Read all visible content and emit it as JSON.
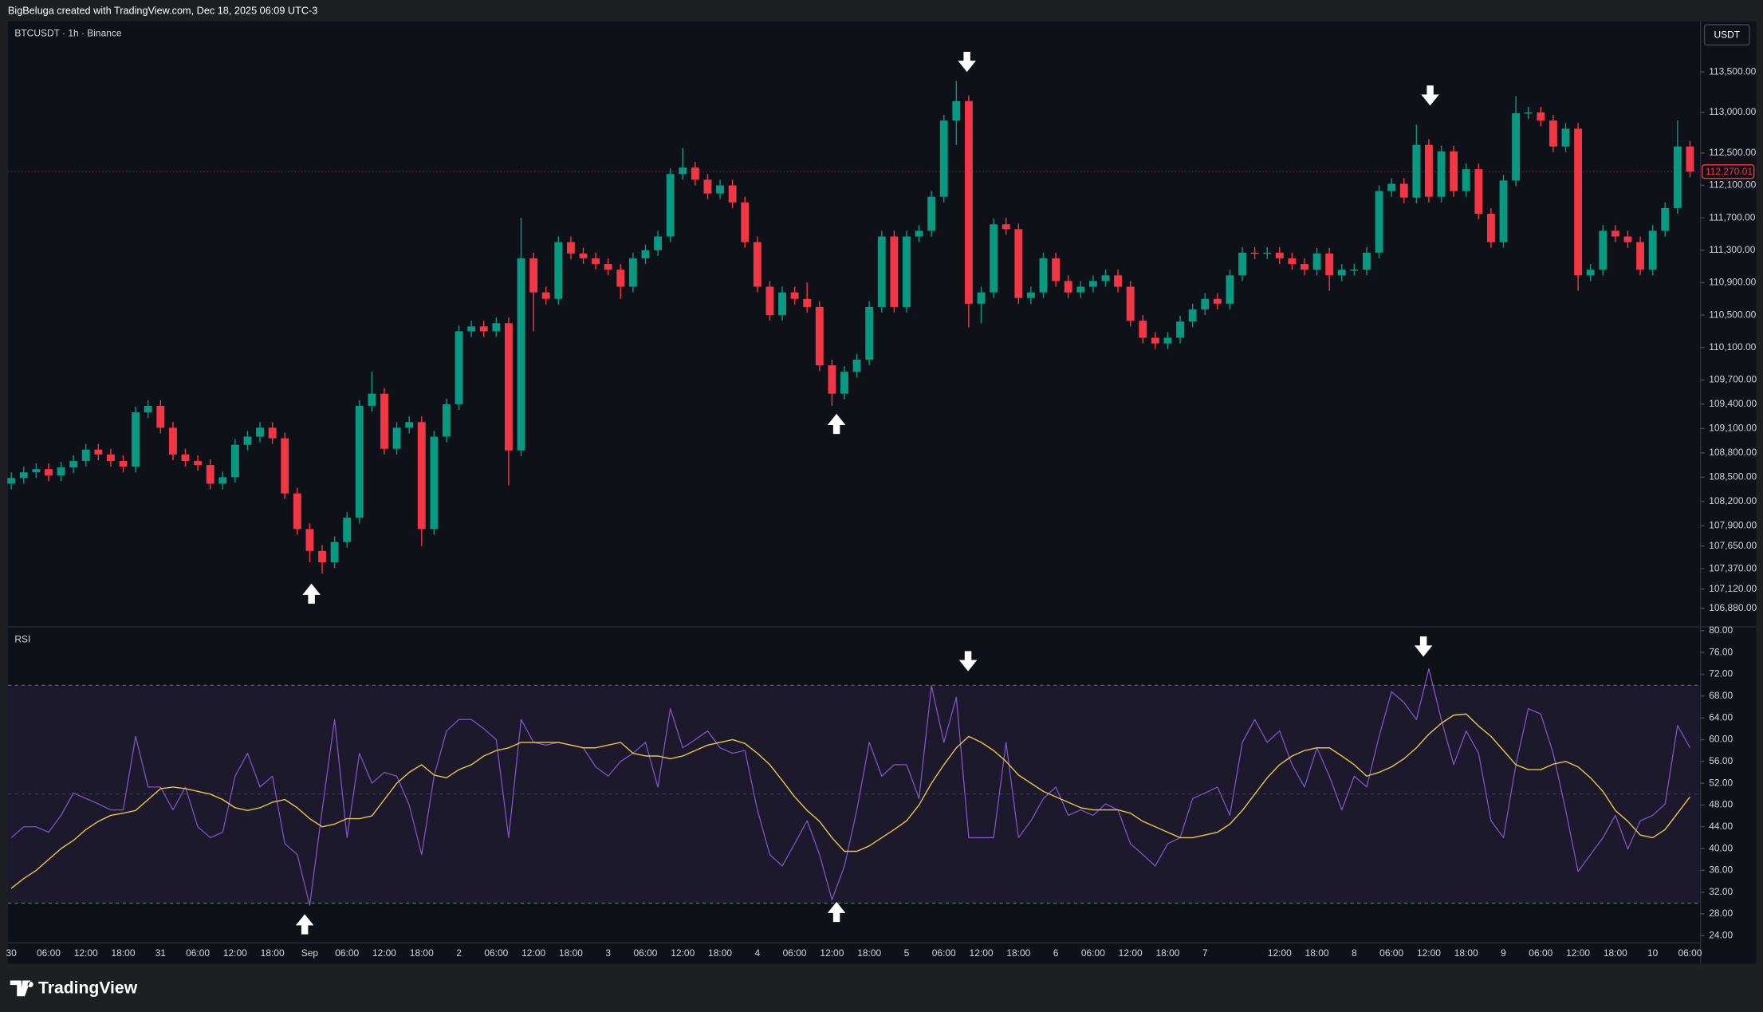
{
  "header": {
    "title": "BigBeluga created with TradingView.com, Dec 18, 2025 06:09 UTC-3"
  },
  "footer": {
    "brand": "TradingView"
  },
  "chart_data": [
    {
      "type": "candlestick",
      "title": "BTCUSDT · 1h · Binance",
      "currency": "USDT",
      "up_color": "#089981",
      "down_color": "#f23645",
      "grid": false,
      "categories": [
        "30",
        null,
        null,
        "06:00",
        null,
        null,
        "12:00",
        null,
        null,
        "18:00",
        null,
        null,
        "31",
        null,
        null,
        "06:00",
        null,
        null,
        "12:00",
        null,
        null,
        "18:00",
        null,
        null,
        "Sep",
        null,
        null,
        "06:00",
        null,
        null,
        "12:00",
        null,
        null,
        "18:00",
        null,
        null,
        "2",
        null,
        null,
        "06:00",
        null,
        null,
        "12:00",
        null,
        null,
        "18:00",
        null,
        null,
        "3",
        null,
        null,
        "06:00",
        null,
        null,
        "12:00",
        null,
        null,
        "18:00",
        null,
        null,
        "4",
        null,
        null,
        "06:00",
        null,
        null,
        "12:00",
        null,
        null,
        "18:00",
        null,
        null,
        "5",
        null,
        null,
        "06:00",
        null,
        null,
        "12:00",
        null,
        null,
        "18:00",
        null,
        null,
        "6",
        null,
        null,
        "06:00",
        null,
        null,
        "12:00",
        null,
        null,
        "18:00",
        null,
        null,
        "7",
        null,
        null,
        null,
        null,
        null,
        "12:00",
        null,
        null,
        "18:00",
        null,
        null,
        "8",
        null,
        null,
        "06:00",
        null,
        null,
        "12:00",
        null,
        null,
        "18:00",
        null,
        null,
        "9",
        null,
        null,
        "06:00",
        null,
        null,
        "12:00",
        null,
        null,
        "18:00",
        null,
        null,
        "10",
        null,
        null,
        "06:00"
      ],
      "open": [
        108420,
        108490,
        108560,
        108600,
        108520,
        108620,
        108700,
        108840,
        108780,
        108700,
        108630,
        109300,
        109380,
        109110,
        108780,
        108700,
        108650,
        108420,
        108500,
        108900,
        109000,
        109110,
        108980,
        108300,
        107860,
        107590,
        107450,
        107700,
        108000,
        109380,
        109530,
        108850,
        109110,
        109180,
        107860,
        109000,
        109400,
        110300,
        110360,
        110300,
        110400,
        108830,
        111200,
        110780,
        110700,
        111400,
        111260,
        111200,
        111130,
        111060,
        110850,
        111200,
        111300,
        111470,
        112240,
        112320,
        112170,
        112000,
        112100,
        111890,
        111400,
        110850,
        110500,
        110780,
        110700,
        110600,
        109880,
        109530,
        109800,
        109950,
        110600,
        111470,
        110600,
        111470,
        111540,
        111960,
        112900,
        113140,
        110640,
        110780,
        111620,
        111560,
        110710,
        110780,
        111200,
        110920,
        110780,
        110850,
        110920,
        110990,
        110850,
        110430,
        110220,
        110150,
        110220,
        110420,
        110570,
        110700,
        110640,
        110990,
        111270,
        111260,
        111270,
        111200,
        111130,
        111060,
        111260,
        110990,
        111060,
        111060,
        111270,
        112030,
        112120,
        111950,
        112600,
        111960,
        112520,
        112030,
        112300,
        111750,
        111400,
        112160,
        112990,
        113000,
        112900,
        112580,
        112800,
        110990,
        111060,
        111540,
        111470,
        111400,
        111060,
        111540,
        111820,
        112580
      ],
      "high": [
        108560,
        108630,
        108670,
        108670,
        108690,
        108770,
        108910,
        108910,
        108850,
        108770,
        109370,
        109450,
        109450,
        109180,
        108850,
        108770,
        108720,
        108570,
        108970,
        109070,
        109180,
        109180,
        109050,
        108370,
        107930,
        107660,
        107770,
        108070,
        109450,
        109800,
        109600,
        109180,
        109250,
        109250,
        109070,
        109470,
        110370,
        110430,
        110430,
        110470,
        110470,
        111700,
        111270,
        110850,
        111470,
        111470,
        111330,
        111270,
        111200,
        111130,
        111270,
        111370,
        111540,
        112310,
        112560,
        112390,
        112240,
        112170,
        112170,
        111960,
        111470,
        110920,
        110850,
        110850,
        110900,
        110670,
        109950,
        109870,
        110020,
        110670,
        111540,
        111540,
        111540,
        111610,
        112030,
        112970,
        113390,
        113210,
        110850,
        111690,
        111700,
        111630,
        110850,
        111270,
        111270,
        110990,
        110920,
        110990,
        111060,
        111060,
        110920,
        110500,
        110290,
        110290,
        110490,
        110640,
        110770,
        110770,
        111060,
        111340,
        111340,
        111340,
        111340,
        111270,
        111200,
        111330,
        111330,
        111130,
        111130,
        111340,
        112100,
        112190,
        112190,
        112850,
        112670,
        112590,
        112590,
        112370,
        112370,
        111820,
        112230,
        113200,
        113070,
        113070,
        112970,
        112870,
        112870,
        111130,
        111610,
        111610,
        111540,
        111470,
        111610,
        111890,
        112900,
        112650
      ],
      "low": [
        108350,
        108420,
        108490,
        108450,
        108450,
        108550,
        108630,
        108710,
        108630,
        108560,
        108560,
        109230,
        109040,
        108710,
        108630,
        108580,
        108350,
        108350,
        108430,
        108830,
        108930,
        108910,
        108230,
        107790,
        107450,
        107310,
        107380,
        107630,
        107930,
        109310,
        108780,
        108780,
        109040,
        107650,
        107790,
        108930,
        109330,
        110230,
        110230,
        110230,
        108400,
        108760,
        110300,
        110630,
        110630,
        111190,
        111130,
        111060,
        110990,
        110700,
        110780,
        111130,
        111230,
        111400,
        112170,
        112100,
        111930,
        111930,
        111820,
        111330,
        110780,
        110430,
        110430,
        110630,
        110530,
        109810,
        109380,
        109460,
        109730,
        109880,
        110530,
        110530,
        110530,
        111400,
        111470,
        111890,
        112600,
        110350,
        110400,
        110710,
        111490,
        110640,
        110640,
        110710,
        110850,
        110710,
        110710,
        110780,
        110850,
        110780,
        110360,
        110150,
        110080,
        110080,
        110150,
        110350,
        110500,
        110570,
        110570,
        110920,
        111190,
        111190,
        111130,
        111060,
        110990,
        110990,
        110800,
        110920,
        110990,
        110990,
        111200,
        111960,
        111880,
        111880,
        111890,
        111890,
        111960,
        111960,
        111680,
        111330,
        111330,
        112090,
        112920,
        112830,
        112510,
        112510,
        110800,
        110920,
        110990,
        111400,
        111330,
        110990,
        110990,
        111470,
        111750,
        112200
      ],
      "close": [
        108490,
        108560,
        108600,
        108520,
        108620,
        108700,
        108840,
        108780,
        108700,
        108630,
        109300,
        109380,
        109110,
        108780,
        108700,
        108650,
        108420,
        108500,
        108900,
        109000,
        109110,
        108980,
        108300,
        107860,
        107590,
        107450,
        107700,
        108000,
        109380,
        109530,
        108850,
        109110,
        109180,
        107860,
        109000,
        109400,
        110300,
        110360,
        110300,
        110400,
        108830,
        111200,
        110780,
        110700,
        111400,
        111260,
        111200,
        111130,
        111060,
        110850,
        111200,
        111300,
        111470,
        112240,
        112320,
        112170,
        112000,
        112100,
        111890,
        111400,
        110850,
        110500,
        110780,
        110700,
        110600,
        109880,
        109530,
        109800,
        109950,
        110600,
        111470,
        110600,
        111470,
        111540,
        111960,
        112900,
        113140,
        110640,
        110780,
        111620,
        111560,
        110710,
        110780,
        111200,
        110920,
        110780,
        110850,
        110920,
        110990,
        110850,
        110430,
        110220,
        110150,
        110220,
        110420,
        110570,
        110700,
        110640,
        110990,
        111270,
        111260,
        111270,
        111200,
        111130,
        111060,
        111260,
        110990,
        111060,
        111060,
        111270,
        112030,
        112120,
        111950,
        112600,
        111960,
        112520,
        112030,
        112300,
        111750,
        111400,
        112160,
        112990,
        113000,
        112900,
        112580,
        112800,
        110990,
        111060,
        111540,
        111470,
        111400,
        111060,
        111540,
        111820,
        112580,
        112270
      ],
      "last_price": {
        "value": 112270.01,
        "label": "112,270.01"
      },
      "ylim": [
        106660,
        114110
      ],
      "yticks": [
        {
          "value": 113500,
          "label": "113,500.00"
        },
        {
          "value": 113000,
          "label": "113,000.00"
        },
        {
          "value": 112500,
          "label": "112,500.00"
        },
        {
          "value": 112100,
          "label": "112,100.00"
        },
        {
          "value": 111700,
          "label": "111,700.00"
        },
        {
          "value": 111300,
          "label": "111,300.00"
        },
        {
          "value": 110900,
          "label": "110,900.00"
        },
        {
          "value": 110500,
          "label": "110,500.00"
        },
        {
          "value": 110100,
          "label": "110,100.00"
        },
        {
          "value": 109700,
          "label": "109,700.00"
        },
        {
          "value": 109400,
          "label": "109,400.00"
        },
        {
          "value": 109100,
          "label": "109,100.00"
        },
        {
          "value": 108800,
          "label": "108,800.00"
        },
        {
          "value": 108500,
          "label": "108,500.00"
        },
        {
          "value": 108200,
          "label": "108,200.00"
        },
        {
          "value": 107900,
          "label": "107,900.00"
        },
        {
          "value": 107650,
          "label": "107,650.00"
        },
        {
          "value": 107370,
          "label": "107,370.00"
        },
        {
          "value": 107120,
          "label": "107,120.00"
        },
        {
          "value": 106880,
          "label": "106,880.00"
        }
      ]
    },
    {
      "type": "line",
      "title": "RSI",
      "grid": false,
      "band": [
        30,
        70
      ],
      "midline": 50,
      "band_color": "#7e57c2",
      "series": [
        {
          "color": "#7e57c2",
          "values": [
            42.0,
            44.0,
            44.0,
            43.0,
            46.1,
            50.2,
            49.2,
            48.2,
            47.1,
            47.1,
            60.6,
            51.3,
            51.3,
            47.1,
            51.3,
            44.0,
            42.0,
            43.0,
            53.3,
            57.5,
            51.3,
            53.3,
            40.9,
            38.9,
            29.6,
            47.1,
            63.7,
            42.0,
            57.5,
            52.0,
            54.0,
            53.3,
            48.0,
            38.9,
            53.3,
            61.6,
            63.7,
            63.7,
            62.0,
            60.0,
            42.0,
            63.7,
            59.5,
            59.0,
            59.5,
            59.0,
            58.5,
            55.0,
            53.3,
            56.0,
            57.5,
            59.5,
            51.3,
            65.7,
            58.5,
            60.0,
            61.6,
            58.5,
            57.5,
            58.0,
            47.1,
            38.9,
            36.8,
            40.9,
            45.1,
            38.9,
            30.6,
            36.8,
            47.1,
            59.5,
            53.3,
            55.4,
            55.4,
            49.2,
            69.9,
            59.5,
            67.8,
            42.0,
            42.0,
            42.0,
            59.5,
            42.0,
            45.1,
            49.2,
            51.3,
            46.1,
            47.1,
            46.1,
            48.2,
            47.1,
            40.9,
            38.9,
            36.8,
            40.9,
            42.0,
            49.2,
            50.2,
            51.3,
            46.1,
            59.5,
            63.7,
            59.5,
            61.6,
            55.4,
            51.3,
            58.5,
            53.3,
            47.1,
            53.3,
            51.3,
            60.6,
            68.8,
            66.8,
            63.7,
            73.0,
            63.7,
            55.4,
            61.6,
            57.5,
            45.1,
            42.0,
            55.4,
            65.7,
            64.7,
            57.5,
            47.1,
            35.8,
            38.9,
            42.0,
            46.1,
            39.9,
            45.1,
            46.1,
            48.2,
            62.6,
            58.5
          ]
        },
        {
          "color": "#e8c547",
          "values": [
            32.7,
            34.5,
            36,
            38,
            40,
            41.5,
            43.5,
            45,
            46.1,
            46.5,
            47,
            49,
            51,
            51.3,
            51,
            50.5,
            50,
            49,
            47.5,
            47,
            47.5,
            48.5,
            49,
            47.5,
            45.5,
            44,
            44.5,
            45.5,
            45.5,
            46,
            49,
            52,
            54,
            55.4,
            53.5,
            53,
            54.5,
            55.4,
            57,
            58,
            58.5,
            59.5,
            59.5,
            59.5,
            59.5,
            59,
            58.5,
            58.5,
            59,
            59.5,
            57.5,
            57,
            57,
            56.5,
            57,
            58,
            59,
            59.5,
            60,
            59.3,
            57.5,
            55.4,
            52.5,
            49.5,
            47,
            45,
            42,
            39.5,
            39.5,
            40.5,
            42,
            43.5,
            45.1,
            48,
            52,
            55.4,
            58.5,
            60.6,
            59.5,
            58,
            56,
            53.5,
            52,
            50.5,
            49.5,
            48.5,
            47.5,
            47.1,
            47.1,
            47.1,
            46.5,
            45,
            44,
            43,
            42,
            42,
            42.5,
            43,
            44.5,
            47,
            50,
            53,
            55.4,
            57,
            58,
            58.5,
            58.5,
            57,
            55.4,
            53.3,
            54,
            55,
            56.5,
            58.5,
            61,
            63,
            64.5,
            64.7,
            62.5,
            60.6,
            58,
            55.4,
            54.5,
            54.5,
            55.5,
            56,
            55,
            53,
            50.5,
            47,
            45,
            42.5,
            42,
            43.5,
            46.5,
            49.5
          ]
        }
      ],
      "ylim": [
        22.8,
        80.6
      ],
      "yticks": [
        {
          "value": 80,
          "label": "80.00"
        },
        {
          "value": 76,
          "label": "76.00"
        },
        {
          "value": 72,
          "label": "72.00"
        },
        {
          "value": 68,
          "label": "68.00"
        },
        {
          "value": 64,
          "label": "64.00"
        },
        {
          "value": 60,
          "label": "60.00"
        },
        {
          "value": 56,
          "label": "56.00"
        },
        {
          "value": 52,
          "label": "52.00"
        },
        {
          "value": 48,
          "label": "48.00"
        },
        {
          "value": 44,
          "label": "44.00"
        },
        {
          "value": 40,
          "label": "40.00"
        },
        {
          "value": 36,
          "label": "36.00"
        },
        {
          "value": 32,
          "label": "32.00"
        },
        {
          "value": 28,
          "label": "28.00"
        },
        {
          "value": 24,
          "label": "24.00"
        }
      ]
    }
  ]
}
